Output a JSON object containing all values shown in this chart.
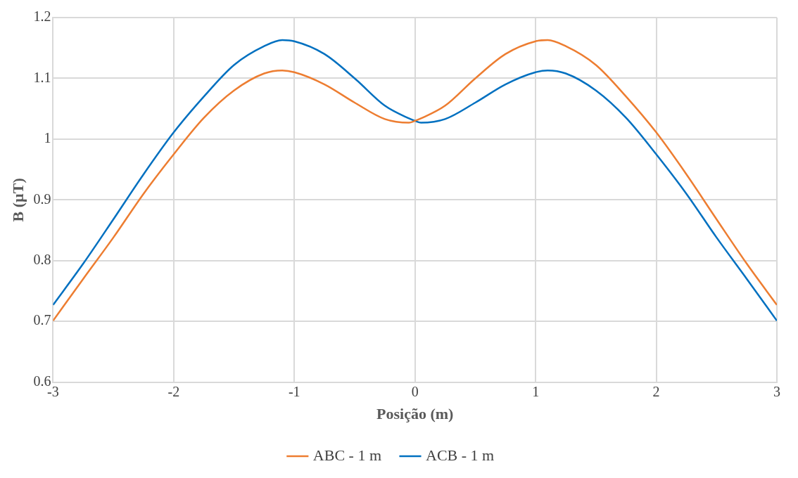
{
  "chart_data": {
    "type": "line",
    "xlabel": "Posição (m)",
    "ylabel": "B (µT)",
    "xlim": [
      -3,
      3
    ],
    "xticks": [
      -3,
      -2,
      -1,
      0,
      1,
      2,
      3
    ],
    "ylim": [
      0.6,
      1.2
    ],
    "yticks": [
      0.6,
      0.7,
      0.8,
      0.9,
      1,
      1.1,
      1.2
    ],
    "x": [
      -3,
      -2.75,
      -2.5,
      -2.25,
      -2,
      -1.75,
      -1.5,
      -1.25,
      -1.1,
      -1,
      -0.75,
      -0.5,
      -0.25,
      -0.05,
      0,
      0.05,
      0.25,
      0.5,
      0.75,
      1,
      1.1,
      1.25,
      1.5,
      1.75,
      2,
      2.25,
      2.5,
      2.75,
      3
    ],
    "series": [
      {
        "name": "ABC - 1 m",
        "color": "#ed7d31",
        "values": [
          0.701,
          0.77,
          0.838,
          0.91,
          0.975,
          1.035,
          1.08,
          1.108,
          1.113,
          1.11,
          1.09,
          1.06,
          1.033,
          1.027,
          1.03,
          1.034,
          1.055,
          1.1,
          1.14,
          1.161,
          1.163,
          1.153,
          1.122,
          1.07,
          1.011,
          0.942,
          0.868,
          0.795,
          0.727
        ]
      },
      {
        "name": "ACB - 1 m",
        "color": "#0070c0",
        "values": [
          0.727,
          0.795,
          0.868,
          0.942,
          1.011,
          1.07,
          1.122,
          1.153,
          1.163,
          1.161,
          1.14,
          1.1,
          1.055,
          1.034,
          1.03,
          1.027,
          1.033,
          1.06,
          1.09,
          1.11,
          1.113,
          1.108,
          1.08,
          1.035,
          0.975,
          0.91,
          0.838,
          0.77,
          0.701
        ]
      }
    ],
    "grid": true,
    "legend": "bottom",
    "marker": "none",
    "line_style": "solid"
  }
}
